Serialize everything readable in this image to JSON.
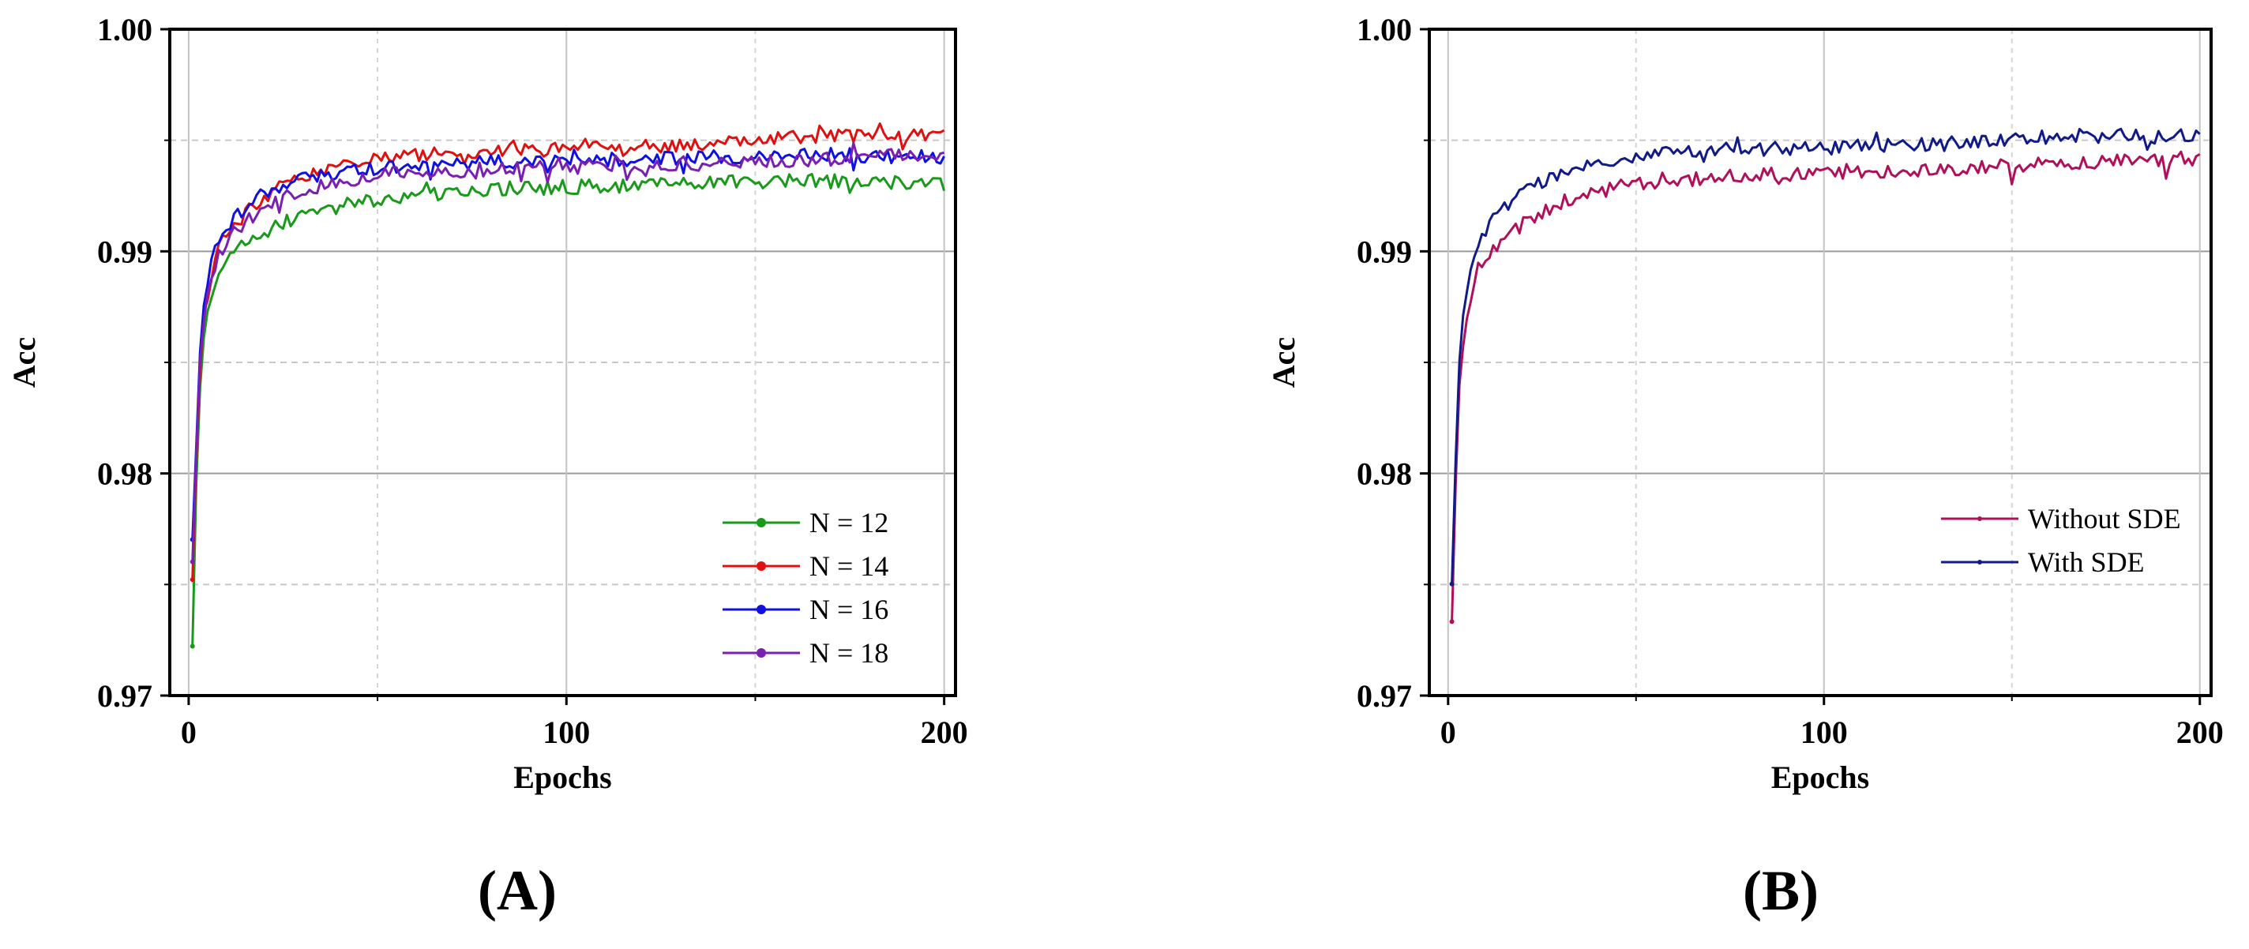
{
  "chart_data": [
    {
      "type": "line",
      "panel_label": "(A)",
      "xlabel": "Epochs",
      "ylabel": "Acc",
      "xlim": [
        -5,
        203
      ],
      "ylim": [
        0.97,
        1.0
      ],
      "xticks": [
        0,
        100,
        200
      ],
      "xtick_labels": [
        "0",
        "100",
        "200"
      ],
      "yticks": [
        0.97,
        0.98,
        0.99,
        1.0
      ],
      "ytick_labels": [
        "0.97",
        "0.98",
        "0.99",
        "1.00"
      ],
      "minor_grid_y": [
        0.975,
        0.985,
        0.995
      ],
      "grid": true,
      "legend_position": "bottom-right",
      "series": [
        {
          "name": "N = 12",
          "color": "#1a9a1a",
          "anchors": [
            [
              1,
              0.9722
            ],
            [
              2,
              0.9795
            ],
            [
              3,
              0.9838
            ],
            [
              4,
              0.9862
            ],
            [
              6,
              0.988
            ],
            [
              8,
              0.9892
            ],
            [
              12,
              0.99
            ],
            [
              20,
              0.9908
            ],
            [
              30,
              0.9917
            ],
            [
              45,
              0.9922
            ],
            [
              60,
              0.9925
            ],
            [
              80,
              0.9928
            ],
            [
              100,
              0.9929
            ],
            [
              130,
              0.993
            ],
            [
              160,
              0.9932
            ],
            [
              200,
              0.993
            ]
          ]
        },
        {
          "name": "N = 14",
          "color": "#e01010",
          "anchors": [
            [
              1,
              0.9752
            ],
            [
              2,
              0.9805
            ],
            [
              3,
              0.9845
            ],
            [
              4,
              0.987
            ],
            [
              6,
              0.989
            ],
            [
              8,
              0.9902
            ],
            [
              12,
              0.9912
            ],
            [
              20,
              0.9925
            ],
            [
              30,
              0.9934
            ],
            [
              45,
              0.994
            ],
            [
              60,
              0.9943
            ],
            [
              80,
              0.9945
            ],
            [
              100,
              0.9946
            ],
            [
              130,
              0.9948
            ],
            [
              165,
              0.9952
            ],
            [
              200,
              0.9953
            ]
          ]
        },
        {
          "name": "N = 16",
          "color": "#1010e0",
          "anchors": [
            [
              1,
              0.977
            ],
            [
              2,
              0.9812
            ],
            [
              3,
              0.9855
            ],
            [
              4,
              0.9875
            ],
            [
              6,
              0.9895
            ],
            [
              8,
              0.9905
            ],
            [
              12,
              0.9915
            ],
            [
              20,
              0.9927
            ],
            [
              30,
              0.9932
            ],
            [
              45,
              0.9937
            ],
            [
              60,
              0.9939
            ],
            [
              80,
              0.994
            ],
            [
              100,
              0.9941
            ],
            [
              130,
              0.9942
            ],
            [
              165,
              0.9944
            ],
            [
              200,
              0.9942
            ]
          ]
        },
        {
          "name": "N = 18",
          "color": "#7a20b0",
          "anchors": [
            [
              1,
              0.976
            ],
            [
              2,
              0.9808
            ],
            [
              3,
              0.985
            ],
            [
              4,
              0.987
            ],
            [
              6,
              0.9888
            ],
            [
              8,
              0.9898
            ],
            [
              12,
              0.9908
            ],
            [
              20,
              0.992
            ],
            [
              30,
              0.9928
            ],
            [
              45,
              0.9933
            ],
            [
              60,
              0.9936
            ],
            [
              80,
              0.9937
            ],
            [
              100,
              0.9938
            ],
            [
              130,
              0.9939
            ],
            [
              165,
              0.9941
            ],
            [
              200,
              0.9944
            ]
          ]
        }
      ]
    },
    {
      "type": "line",
      "panel_label": "(B)",
      "xlabel": "Epochs",
      "ylabel": "Acc",
      "xlim": [
        -5,
        203
      ],
      "ylim": [
        0.97,
        1.0
      ],
      "xticks": [
        0,
        100,
        200
      ],
      "xtick_labels": [
        "0",
        "100",
        "200"
      ],
      "yticks": [
        0.97,
        0.98,
        0.99,
        1.0
      ],
      "ytick_labels": [
        "0.97",
        "0.98",
        "0.99",
        "1.00"
      ],
      "minor_grid_y": [
        0.975,
        0.985,
        0.995
      ],
      "grid": true,
      "legend_position": "right",
      "series": [
        {
          "name": "Without SDE",
          "color": "#b0105a",
          "anchors": [
            [
              1,
              0.9733
            ],
            [
              2,
              0.9795
            ],
            [
              3,
              0.984
            ],
            [
              4,
              0.986
            ],
            [
              6,
              0.988
            ],
            [
              8,
              0.9893
            ],
            [
              12,
              0.9902
            ],
            [
              20,
              0.9912
            ],
            [
              30,
              0.9922
            ],
            [
              45,
              0.9929
            ],
            [
              60,
              0.9932
            ],
            [
              80,
              0.9934
            ],
            [
              100,
              0.9935
            ],
            [
              130,
              0.9937
            ],
            [
              165,
              0.994
            ],
            [
              200,
              0.9942
            ]
          ]
        },
        {
          "name": "With SDE",
          "color": "#101a88",
          "anchors": [
            [
              1,
              0.975
            ],
            [
              2,
              0.9805
            ],
            [
              3,
              0.985
            ],
            [
              4,
              0.987
            ],
            [
              6,
              0.989
            ],
            [
              8,
              0.9903
            ],
            [
              12,
              0.9915
            ],
            [
              20,
              0.9927
            ],
            [
              30,
              0.9936
            ],
            [
              45,
              0.9942
            ],
            [
              60,
              0.9945
            ],
            [
              80,
              0.9946
            ],
            [
              100,
              0.9947
            ],
            [
              130,
              0.9948
            ],
            [
              165,
              0.9952
            ],
            [
              200,
              0.9952
            ]
          ]
        }
      ]
    }
  ]
}
